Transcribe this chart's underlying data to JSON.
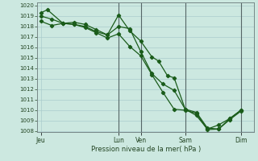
{
  "background_color": "#cce8e0",
  "plot_bg_color": "#cce8e0",
  "grid_color": "#aacccc",
  "line_color": "#1a5c1a",
  "marker_color": "#1a5c1a",
  "ylabel_min": 1008,
  "ylabel_max": 1020,
  "xlabel": "Pression niveau de la mer( hPa )",
  "day_labels": [
    "Jeu",
    "Lun",
    "Ven",
    "Sam",
    "Dim"
  ],
  "day_positions": [
    0.0,
    3.5,
    4.5,
    6.5,
    9.0
  ],
  "vline_positions": [
    3.5,
    4.5,
    6.5,
    9.0
  ],
  "series": [
    [
      [
        0.0,
        1019.3
      ],
      [
        0.3,
        1019.6
      ],
      [
        1.0,
        1018.3
      ],
      [
        1.5,
        1018.4
      ],
      [
        2.0,
        1018.2
      ],
      [
        2.5,
        1017.7
      ],
      [
        3.0,
        1017.2
      ],
      [
        3.5,
        1019.1
      ],
      [
        4.0,
        1017.6
      ],
      [
        4.5,
        1016.6
      ],
      [
        5.0,
        1015.1
      ],
      [
        5.3,
        1014.7
      ],
      [
        5.7,
        1013.3
      ],
      [
        6.0,
        1013.1
      ],
      [
        6.5,
        1010.1
      ],
      [
        7.0,
        1009.8
      ],
      [
        7.5,
        1008.3
      ],
      [
        8.0,
        1008.2
      ],
      [
        8.5,
        1009.1
      ],
      [
        9.0,
        1009.9
      ]
    ],
    [
      [
        0.0,
        1019.0
      ],
      [
        0.5,
        1018.7
      ],
      [
        1.0,
        1018.3
      ],
      [
        1.5,
        1018.2
      ],
      [
        2.0,
        1017.9
      ],
      [
        2.5,
        1017.4
      ],
      [
        3.0,
        1016.9
      ],
      [
        3.5,
        1017.3
      ],
      [
        4.0,
        1016.1
      ],
      [
        4.5,
        1015.2
      ],
      [
        5.0,
        1013.4
      ],
      [
        5.5,
        1011.7
      ],
      [
        6.0,
        1010.1
      ],
      [
        6.5,
        1010.0
      ],
      [
        7.0,
        1009.7
      ],
      [
        7.5,
        1008.15
      ],
      [
        8.0,
        1008.2
      ],
      [
        8.5,
        1009.2
      ],
      [
        9.0,
        1010.0
      ]
    ],
    [
      [
        0.0,
        1018.5
      ],
      [
        0.5,
        1018.1
      ],
      [
        1.0,
        1018.3
      ],
      [
        1.5,
        1018.2
      ],
      [
        2.0,
        1018.0
      ],
      [
        2.5,
        1017.5
      ],
      [
        3.0,
        1017.2
      ],
      [
        3.5,
        1018.0
      ],
      [
        4.0,
        1017.8
      ],
      [
        4.5,
        1015.6
      ],
      [
        5.0,
        1013.5
      ],
      [
        5.5,
        1012.5
      ],
      [
        6.0,
        1011.9
      ],
      [
        6.5,
        1010.1
      ],
      [
        7.0,
        1009.5
      ],
      [
        7.5,
        1008.2
      ],
      [
        8.0,
        1008.6
      ],
      [
        8.5,
        1009.2
      ],
      [
        9.0,
        1010.0
      ]
    ]
  ]
}
